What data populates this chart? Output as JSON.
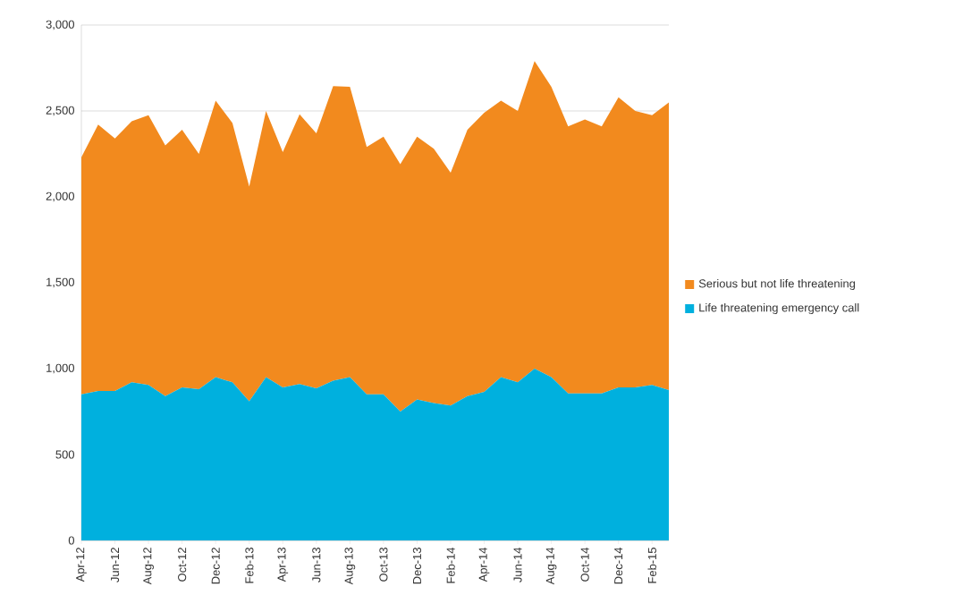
{
  "chart_data": {
    "type": "area",
    "stacked": true,
    "categories": [
      "Apr-12",
      null,
      "Jun-12",
      null,
      "Aug-12",
      null,
      "Oct-12",
      null,
      "Dec-12",
      null,
      "Feb-13",
      null,
      "Apr-13",
      null,
      "Jun-13",
      null,
      "Aug-13",
      null,
      "Oct-13",
      null,
      "Dec-13",
      null,
      "Feb-14",
      null,
      "Apr-14",
      null,
      "Jun-14",
      null,
      "Aug-14",
      null,
      "Oct-14",
      null,
      "Dec-14",
      null,
      "Feb-15",
      null
    ],
    "series": [
      {
        "name": "Life threatening emergency call",
        "color": "#00b0de",
        "values": [
          850,
          870,
          870,
          920,
          905,
          840,
          890,
          880,
          950,
          920,
          810,
          950,
          890,
          910,
          885,
          930,
          950,
          850,
          850,
          750,
          820,
          800,
          785,
          840,
          865,
          950,
          920,
          1000,
          950,
          855,
          855,
          855,
          890,
          890,
          905,
          875
        ]
      },
      {
        "name": "Serious but not life threatening",
        "color": "#f28a1e",
        "values": [
          1380,
          1550,
          1470,
          1520,
          1570,
          1460,
          1500,
          1370,
          1610,
          1510,
          1250,
          1550,
          1370,
          1570,
          1485,
          1715,
          1690,
          1440,
          1500,
          1440,
          1530,
          1480,
          1355,
          1550,
          1625,
          1610,
          1580,
          1790,
          1690,
          1555,
          1595,
          1555,
          1690,
          1610,
          1570,
          1675
        ]
      }
    ],
    "ylim": [
      0,
      3000
    ],
    "yticks": [
      {
        "value": 0,
        "label": "0"
      },
      {
        "value": 500,
        "label": "500"
      },
      {
        "value": 1000,
        "label": "1,000"
      },
      {
        "value": 1500,
        "label": "1,500"
      },
      {
        "value": 2000,
        "label": "2,000"
      },
      {
        "value": 2500,
        "label": "2,500"
      },
      {
        "value": 3000,
        "label": "3,000"
      }
    ],
    "grid": "y",
    "legend": "right"
  }
}
